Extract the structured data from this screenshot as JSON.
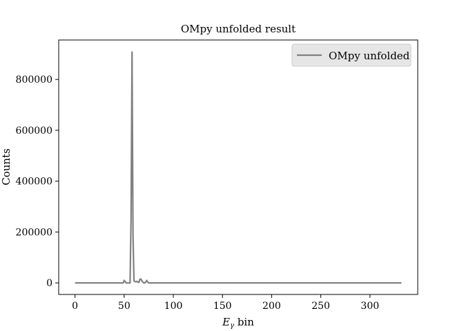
{
  "chart_data": {
    "type": "line",
    "title": "OMpy unfolded result",
    "xlabel_main": "E",
    "xlabel_sub": "γ",
    "xlabel_rest": " bin",
    "ylabel": "Counts",
    "xlim": [
      -16.6,
      348.6
    ],
    "ylim": [
      -45500,
      955000
    ],
    "xticks": [
      0,
      50,
      100,
      150,
      200,
      250,
      300
    ],
    "yticks": [
      0,
      200000,
      400000,
      600000,
      800000
    ],
    "grid": false,
    "legend_position": "top-right",
    "series": [
      {
        "name": "OMpy unfolded",
        "color": "#808080",
        "x": [
          0,
          49,
          50,
          51,
          52,
          53,
          54,
          55,
          56,
          57,
          58,
          59,
          60,
          61,
          62,
          63,
          64,
          65,
          66,
          67,
          68,
          69,
          70,
          71,
          72,
          73,
          74,
          75,
          76,
          332
        ],
        "y": [
          0,
          0,
          9000,
          5000,
          0,
          0,
          0,
          0,
          0,
          250000,
          910000,
          185000,
          8000,
          5000,
          4000,
          6000,
          3000,
          2000,
          14000,
          15000,
          8000,
          3000,
          0,
          0,
          4000,
          9000,
          3000,
          0,
          0,
          0
        ]
      }
    ]
  }
}
